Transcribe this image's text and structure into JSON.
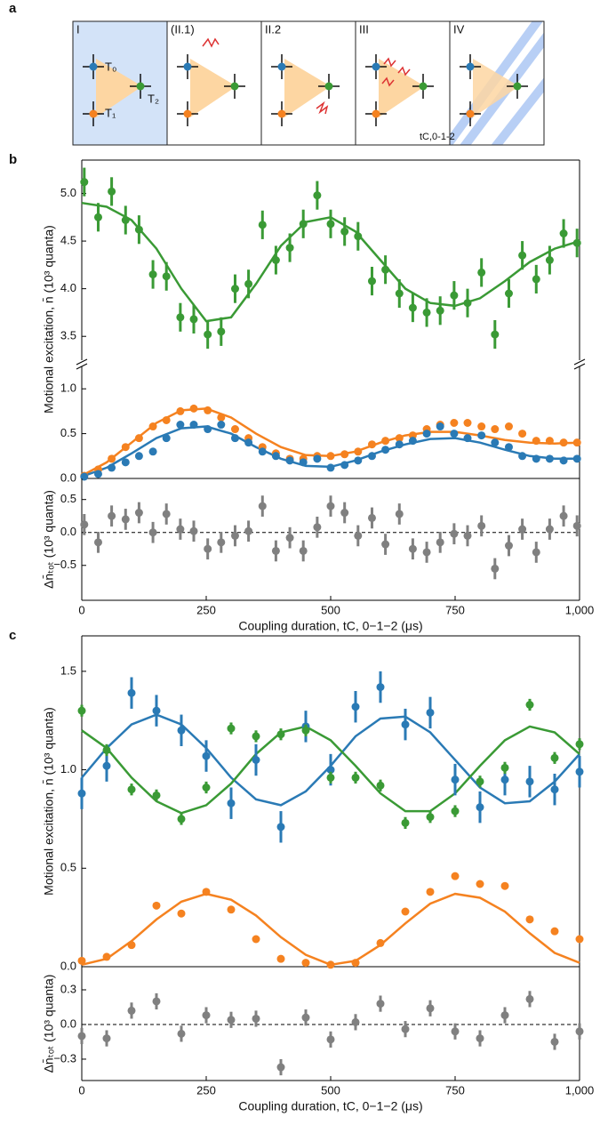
{
  "panel_a": {
    "label": "a",
    "frames": [
      "I",
      "(II.1)",
      "II.2",
      "III",
      "IV"
    ],
    "ions": [
      "T₀",
      "T₁",
      "T₂"
    ],
    "time_label": "tC,0-1-2"
  },
  "chart_data": [
    {
      "type": "scatter",
      "panel": "b",
      "x": [
        5,
        33,
        60,
        88,
        115,
        143,
        170,
        198,
        225,
        253,
        280,
        308,
        335,
        363,
        390,
        418,
        445,
        473,
        500,
        528,
        555,
        583,
        610,
        638,
        665,
        693,
        720,
        748,
        775,
        803,
        830,
        858,
        885,
        913,
        940,
        968,
        995
      ],
      "xlim": [
        0,
        1000
      ],
      "ylim": [
        3.25,
        5.35
      ],
      "yticks": [
        {
          "value": 3.5,
          "label": "3.5"
        },
        {
          "value": 4,
          "label": "4.0"
        },
        {
          "value": 4.5,
          "label": "4.5"
        },
        {
          "value": 5,
          "label": "5.0"
        }
      ],
      "series": [
        {
          "color": "#3a9a35",
          "error": 0.15,
          "values": [
            5.12,
            4.75,
            5.02,
            4.72,
            4.62,
            4.15,
            4.13,
            3.7,
            3.68,
            3.52,
            3.55,
            4.0,
            4.05,
            4.67,
            4.3,
            4.43,
            4.68,
            4.98,
            4.68,
            4.6,
            4.55,
            4.08,
            4.2,
            3.95,
            3.8,
            3.75,
            3.77,
            3.93,
            3.85,
            4.17,
            3.52,
            3.95,
            4.35,
            4.1,
            4.3,
            4.58,
            4.48
          ]
        }
      ],
      "fit_x": [
        0,
        50,
        100,
        150,
        200,
        250,
        300,
        350,
        400,
        450,
        500,
        550,
        600,
        650,
        700,
        750,
        800,
        850,
        900,
        950,
        1000
      ],
      "fits": [
        {
          "color": "#3a9a35",
          "values": [
            4.9,
            4.86,
            4.72,
            4.42,
            4.0,
            3.66,
            3.7,
            4.05,
            4.45,
            4.7,
            4.75,
            4.6,
            4.3,
            4.0,
            3.85,
            3.82,
            3.9,
            4.08,
            4.28,
            4.42,
            4.5
          ]
        }
      ]
    },
    {
      "type": "scatter",
      "x": [
        5,
        33,
        60,
        88,
        115,
        143,
        170,
        198,
        225,
        253,
        280,
        308,
        335,
        363,
        390,
        418,
        445,
        473,
        500,
        528,
        555,
        583,
        610,
        638,
        665,
        693,
        720,
        748,
        775,
        803,
        830,
        858,
        885,
        913,
        940,
        968,
        995
      ],
      "xlim": [
        0,
        1000
      ],
      "ylim": [
        0,
        1.25
      ],
      "yticks": [
        {
          "value": 0,
          "label": "0.0"
        },
        {
          "value": 0.5,
          "label": "0.5"
        },
        {
          "value": 1,
          "label": "1.0"
        }
      ],
      "ylabel": "Motional excitation, n̄ (10³ quanta)",
      "series": [
        {
          "color": "#f58220",
          "values": [
            0.03,
            0.1,
            0.22,
            0.35,
            0.45,
            0.58,
            0.65,
            0.75,
            0.78,
            0.76,
            0.68,
            0.55,
            0.45,
            0.35,
            0.28,
            0.22,
            0.22,
            0.25,
            0.25,
            0.27,
            0.3,
            0.38,
            0.42,
            0.45,
            0.48,
            0.55,
            0.6,
            0.62,
            0.62,
            0.58,
            0.55,
            0.58,
            0.5,
            0.42,
            0.42,
            0.4,
            0.4
          ]
        },
        {
          "color": "#2a7ab5",
          "values": [
            0.02,
            0.05,
            0.12,
            0.18,
            0.25,
            0.3,
            0.45,
            0.6,
            0.6,
            0.55,
            0.6,
            0.45,
            0.4,
            0.3,
            0.25,
            0.2,
            0.18,
            0.22,
            0.12,
            0.15,
            0.2,
            0.25,
            0.32,
            0.38,
            0.42,
            0.5,
            0.58,
            0.5,
            0.45,
            0.48,
            0.4,
            0.35,
            0.25,
            0.22,
            0.22,
            0.2,
            0.22
          ]
        }
      ],
      "fit_x": [
        0,
        50,
        100,
        150,
        200,
        250,
        300,
        350,
        400,
        450,
        500,
        550,
        600,
        650,
        700,
        750,
        800,
        850,
        900,
        950,
        1000
      ],
      "fits": [
        {
          "color": "#f58220",
          "values": [
            0.03,
            0.18,
            0.4,
            0.62,
            0.76,
            0.78,
            0.68,
            0.5,
            0.35,
            0.26,
            0.25,
            0.3,
            0.4,
            0.48,
            0.52,
            0.52,
            0.48,
            0.43,
            0.4,
            0.39,
            0.4
          ]
        },
        {
          "color": "#2a7ab5",
          "values": [
            0.02,
            0.12,
            0.28,
            0.45,
            0.56,
            0.58,
            0.5,
            0.35,
            0.22,
            0.14,
            0.13,
            0.2,
            0.3,
            0.38,
            0.44,
            0.45,
            0.4,
            0.32,
            0.25,
            0.22,
            0.22
          ]
        }
      ]
    },
    {
      "type": "scatter",
      "x": [
        5,
        33,
        60,
        88,
        115,
        143,
        170,
        198,
        225,
        253,
        280,
        308,
        335,
        363,
        390,
        418,
        445,
        473,
        500,
        528,
        555,
        583,
        610,
        638,
        665,
        693,
        720,
        748,
        775,
        803,
        830,
        858,
        885,
        913,
        940,
        968,
        995
      ],
      "xlim": [
        0,
        1000
      ],
      "ylim": [
        -1.03,
        0.82
      ],
      "yticks": [
        {
          "value": -0.5,
          "label": "−0.5"
        },
        {
          "value": 0,
          "label": "0.0"
        },
        {
          "value": 0.5,
          "label": "0.5"
        }
      ],
      "xticks": [
        0,
        250,
        500,
        750,
        {
          "value": 1000,
          "label": "1,000"
        }
      ],
      "ylabel": "Δn̄ₜₒₜ (10³ quanta)",
      "xlabel": "Coupling duration, tC, 0−1−2 (μs)",
      "hline": 0,
      "series": [
        {
          "color": "#808080",
          "error": 0.16,
          "values": [
            0.12,
            -0.15,
            0.25,
            0.2,
            0.3,
            0.0,
            0.28,
            0.05,
            0.02,
            -0.25,
            -0.15,
            -0.05,
            0.02,
            0.4,
            -0.28,
            -0.08,
            -0.28,
            0.08,
            0.4,
            0.3,
            -0.05,
            0.22,
            -0.18,
            0.28,
            -0.25,
            -0.3,
            -0.15,
            -0.02,
            -0.05,
            0.1,
            -0.55,
            -0.2,
            0.05,
            -0.3,
            0.05,
            0.25,
            0.1
          ]
        }
      ]
    },
    {
      "type": "scatter",
      "panel": "c",
      "x": [
        0,
        50,
        100,
        150,
        200,
        250,
        300,
        350,
        400,
        450,
        500,
        550,
        600,
        650,
        700,
        750,
        800,
        850,
        900,
        950,
        1000
      ],
      "xlim": [
        0,
        1000
      ],
      "ylim": [
        0,
        1.68
      ],
      "yticks": [
        {
          "value": 0,
          "label": "0.0"
        },
        {
          "value": 0.5,
          "label": "0.5"
        },
        {
          "value": 1,
          "label": "1.0"
        },
        {
          "value": 1.5,
          "label": "1.5"
        }
      ],
      "ylabel": "Motional excitation, n̄ (10³ quanta)",
      "series": [
        {
          "color": "#2a7ab5",
          "error": 0.08,
          "values": [
            0.88,
            1.02,
            1.39,
            1.3,
            1.2,
            1.07,
            0.83,
            1.05,
            0.71,
            1.22,
            1.0,
            1.32,
            1.42,
            1.23,
            1.29,
            0.95,
            0.81,
            0.95,
            0.94,
            0.9,
            0.99
          ]
        },
        {
          "color": "#3a9a35",
          "error": 0.03,
          "values": [
            1.3,
            1.1,
            0.9,
            0.87,
            0.75,
            0.91,
            1.21,
            1.17,
            1.18,
            1.2,
            0.96,
            0.96,
            0.92,
            0.73,
            0.76,
            0.79,
            0.94,
            1.01,
            1.33,
            1.06,
            1.13
          ]
        },
        {
          "color": "#f58220",
          "values": [
            0.03,
            0.05,
            0.11,
            0.31,
            0.27,
            0.38,
            0.29,
            0.14,
            0.04,
            0.02,
            0.01,
            0.02,
            0.12,
            0.28,
            0.38,
            0.46,
            0.42,
            0.41,
            0.24,
            0.18,
            0.14
          ]
        }
      ],
      "fit_x": [
        0,
        50,
        100,
        150,
        200,
        250,
        300,
        350,
        400,
        450,
        500,
        550,
        600,
        650,
        700,
        750,
        800,
        850,
        900,
        950,
        1000
      ],
      "fits": [
        {
          "color": "#2a7ab5",
          "values": [
            0.96,
            1.11,
            1.23,
            1.28,
            1.23,
            1.11,
            0.96,
            0.85,
            0.82,
            0.89,
            1.02,
            1.17,
            1.26,
            1.27,
            1.19,
            1.05,
            0.91,
            0.83,
            0.84,
            0.94,
            1.08
          ]
        },
        {
          "color": "#3a9a35",
          "values": [
            1.2,
            1.11,
            0.96,
            0.84,
            0.78,
            0.82,
            0.93,
            1.08,
            1.19,
            1.22,
            1.15,
            1.02,
            0.88,
            0.79,
            0.79,
            0.88,
            1.02,
            1.15,
            1.22,
            1.19,
            1.08
          ]
        },
        {
          "color": "#f58220",
          "values": [
            0.01,
            0.04,
            0.13,
            0.24,
            0.33,
            0.37,
            0.34,
            0.26,
            0.15,
            0.06,
            0.01,
            0.03,
            0.11,
            0.22,
            0.32,
            0.37,
            0.35,
            0.28,
            0.17,
            0.07,
            0.02
          ]
        }
      ]
    },
    {
      "type": "scatter",
      "x": [
        0,
        50,
        100,
        150,
        200,
        250,
        300,
        350,
        400,
        450,
        500,
        550,
        600,
        650,
        700,
        750,
        800,
        850,
        900,
        950,
        1000
      ],
      "xlim": [
        0,
        1000
      ],
      "ylim": [
        -0.485,
        0.5
      ],
      "yticks": [
        {
          "value": -0.3,
          "label": "−0.3"
        },
        {
          "value": 0,
          "label": "0.0"
        },
        {
          "value": 0.3,
          "label": "0.3"
        }
      ],
      "xticks": [
        0,
        250,
        500,
        750,
        {
          "value": 1000,
          "label": "1,000"
        }
      ],
      "ylabel": "Δn̄ₜₒₜ (10³ quanta)",
      "xlabel": "Coupling duration, tC, 0−1−2 (μs)",
      "hline": 0,
      "series": [
        {
          "color": "#808080",
          "error": 0.07,
          "values": [
            -0.1,
            -0.12,
            0.12,
            0.2,
            -0.08,
            0.08,
            0.04,
            0.05,
            -0.37,
            0.06,
            -0.13,
            0.02,
            0.18,
            -0.04,
            0.14,
            -0.06,
            -0.12,
            0.08,
            0.22,
            -0.15,
            -0.06
          ]
        }
      ]
    }
  ]
}
